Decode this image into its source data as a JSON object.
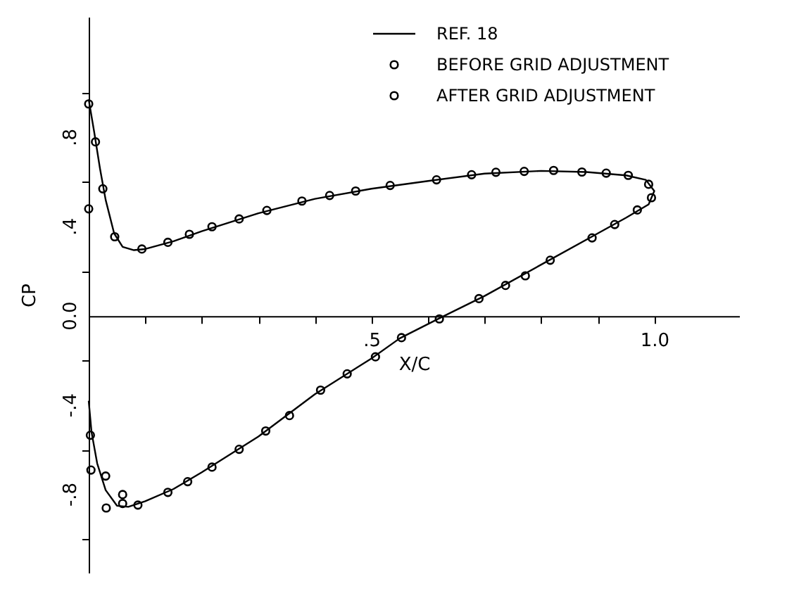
{
  "chart_data": {
    "type": "line",
    "xlabel": "X/C",
    "ylabel": "CP",
    "xlim": [
      0,
      1.15
    ],
    "ylim": [
      -1.15,
      1.34
    ],
    "xticks": [
      {
        "value": 0.1,
        "label": null
      },
      {
        "value": 0.2,
        "label": null
      },
      {
        "value": 0.3,
        "label": null
      },
      {
        "value": 0.4,
        "label": null
      },
      {
        "value": 0.5,
        "label": ".5"
      },
      {
        "value": 0.6,
        "label": null
      },
      {
        "value": 0.7,
        "label": null
      },
      {
        "value": 0.8,
        "label": null
      },
      {
        "value": 0.9,
        "label": null
      },
      {
        "value": 1.0,
        "label": "1.0"
      }
    ],
    "yticks": [
      {
        "value": -1.0,
        "label": null
      },
      {
        "value": -0.8,
        "label": "-.8"
      },
      {
        "value": -0.6,
        "label": null
      },
      {
        "value": -0.4,
        "label": "-.4"
      },
      {
        "value": -0.2,
        "label": null
      },
      {
        "value": 0,
        "label": "0.0"
      },
      {
        "value": 0.2,
        "label": null
      },
      {
        "value": 0.4,
        "label": ".4"
      },
      {
        "value": 0.6,
        "label": null
      },
      {
        "value": 0.8,
        "label": ".8"
      },
      {
        "value": 1.0,
        "label": null
      }
    ],
    "grid": false,
    "legend": "top right",
    "series": [
      {
        "name": "REF. 18",
        "color": "#000000",
        "marker": "none",
        "line_style": "solid",
        "x": [
          0,
          0.01,
          0.02,
          0.03,
          0.045,
          0.06,
          0.08,
          0.1,
          0.15,
          0.2,
          0.3,
          0.4,
          0.5,
          0.6,
          0.7,
          0.8,
          0.88,
          0.95,
          0.985,
          1.0,
          0.99,
          0.95,
          0.9,
          0.8,
          0.7,
          0.62,
          0.55,
          0.5,
          0.4,
          0.3,
          0.2,
          0.15,
          0.1,
          0.07,
          0.05,
          0.03,
          0.015,
          0.005,
          0
        ],
        "values": [
          0.97,
          0.82,
          0.66,
          0.52,
          0.37,
          0.31,
          0.295,
          0.3,
          0.335,
          0.38,
          0.46,
          0.525,
          0.57,
          0.605,
          0.638,
          0.65,
          0.645,
          0.63,
          0.61,
          0.56,
          0.5,
          0.44,
          0.37,
          0.23,
          0.09,
          -0.01,
          -0.1,
          -0.19,
          -0.35,
          -0.54,
          -0.7,
          -0.775,
          -0.83,
          -0.855,
          -0.85,
          -0.78,
          -0.66,
          -0.52,
          -0.38
        ]
      },
      {
        "name": "BEFORE GRID ADJUSTMENT",
        "type": "scatter",
        "color": "#000000",
        "marker": "circle",
        "x": [
          0.004,
          0.031,
          0.06
        ],
        "values": [
          -0.69,
          -0.86,
          -0.8
        ]
      },
      {
        "name": "AFTER GRID ADJUSTMENT",
        "type": "scatter",
        "color": "#000000",
        "marker": "circle",
        "x": [
          0,
          0.012,
          0.025,
          0,
          0.046,
          0.094,
          0.14,
          0.178,
          0.218,
          0.266,
          0.315,
          0.377,
          0.426,
          0.472,
          0.533,
          0.615,
          0.677,
          0.72,
          0.77,
          0.822,
          0.872,
          0.915,
          0.954,
          0.99,
          0.995,
          0.97,
          0.93,
          0.89,
          0.816,
          0.772,
          0.737,
          0.69,
          0.62,
          0.553,
          0.507,
          0.457,
          0.41,
          0.355,
          0.313,
          0.266,
          0.218,
          0.175,
          0.14,
          0.087,
          0.06,
          0.03,
          0.003
        ],
        "values": [
          0.95,
          0.78,
          0.57,
          0.48,
          0.355,
          0.3,
          0.33,
          0.366,
          0.4,
          0.435,
          0.473,
          0.515,
          0.54,
          0.56,
          0.585,
          0.61,
          0.633,
          0.644,
          0.648,
          0.652,
          0.645,
          0.64,
          0.63,
          0.59,
          0.53,
          0.475,
          0.41,
          0.35,
          0.25,
          0.18,
          0.137,
          0.078,
          -0.013,
          -0.097,
          -0.183,
          -0.259,
          -0.332,
          -0.446,
          -0.515,
          -0.597,
          -0.677,
          -0.742,
          -0.79,
          -0.847,
          -0.84,
          -0.717,
          -0.534
        ]
      }
    ]
  }
}
